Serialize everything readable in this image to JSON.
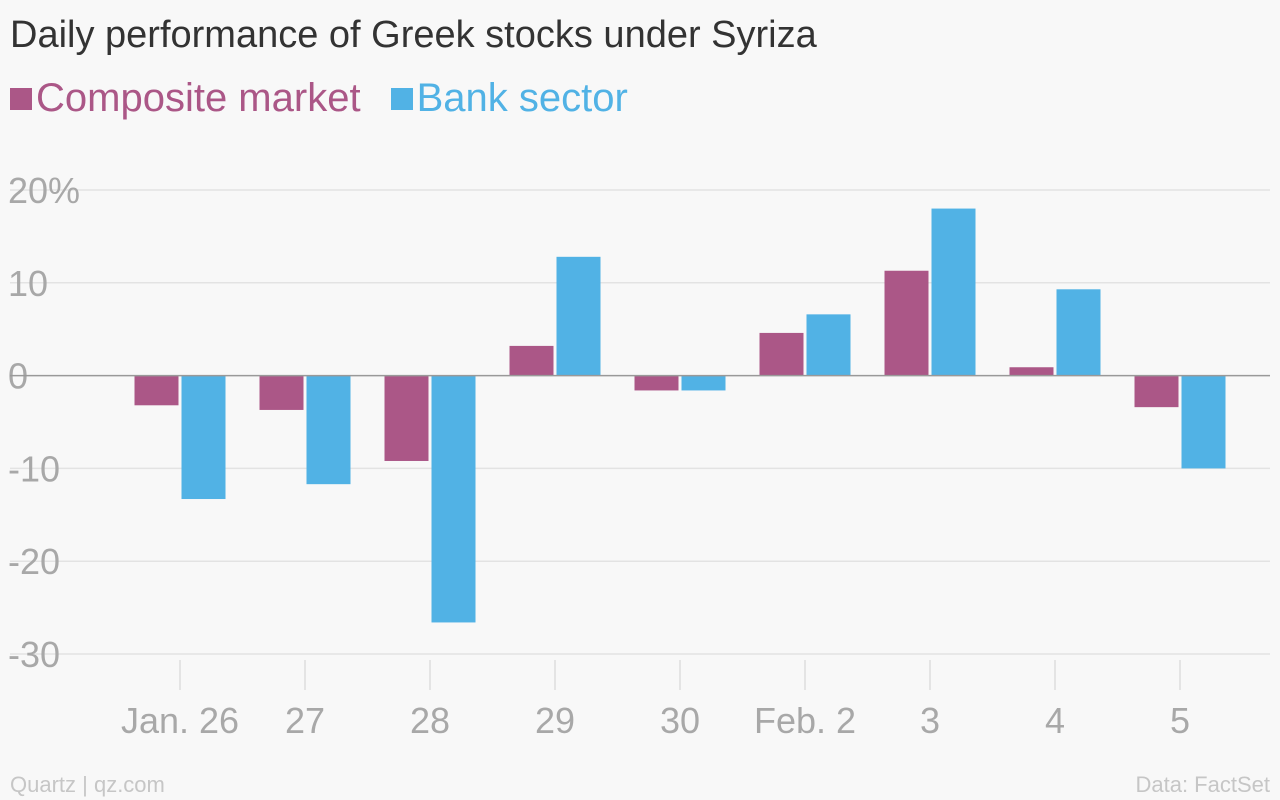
{
  "chart_data": {
    "type": "bar",
    "title": "Daily performance of Greek stocks under Syriza",
    "categories": [
      "Jan. 26",
      "27",
      "28",
      "29",
      "30",
      "Feb. 2",
      "3",
      "4",
      "5"
    ],
    "series": [
      {
        "name": "Composite market",
        "color": "#ab5787",
        "values": [
          -3.2,
          -3.7,
          -9.2,
          3.2,
          -1.6,
          4.6,
          11.3,
          0.9,
          -3.4
        ]
      },
      {
        "name": "Bank sector",
        "color": "#51b2e5",
        "values": [
          -13.3,
          -11.7,
          -26.6,
          12.8,
          -1.6,
          6.6,
          18.0,
          9.3,
          -10.0
        ]
      }
    ],
    "ylim": [
      -30,
      20
    ],
    "yticks": [
      {
        "value": 20,
        "label": "20%"
      },
      {
        "value": 10,
        "label": "10"
      },
      {
        "value": 0,
        "label": "0"
      },
      {
        "value": -10,
        "label": "-10"
      },
      {
        "value": -20,
        "label": "-20"
      },
      {
        "value": -30,
        "label": "-30"
      }
    ],
    "grid": true,
    "legend_position": "top-left"
  },
  "footer": {
    "source": "Quartz | qz.com",
    "data_credit": "Data: FactSet"
  }
}
